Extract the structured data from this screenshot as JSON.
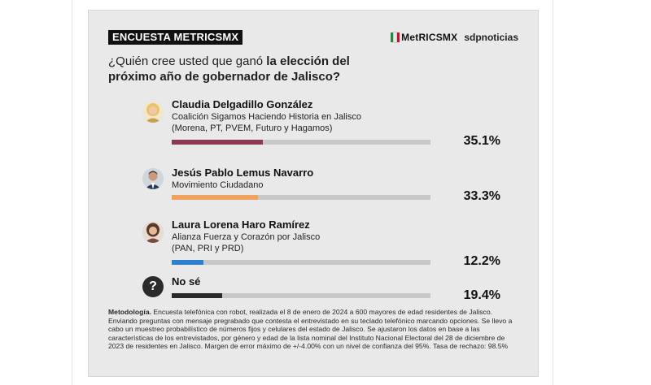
{
  "header": {
    "survey_tag": "ENCUESTA METRICSMX",
    "metrics_logo": "MetRICSMX",
    "sdp_logo": "sdpnoticias"
  },
  "question": {
    "normal": "¿Quién cree usted que ganó ",
    "bold": "la elección del próximo año de gobernador de Jalisco?"
  },
  "candidates": [
    {
      "name": "Claudia Delgadillo González",
      "line1": "Coalición Sigamos Haciendo Historia en Jalisco",
      "line2": "(Morena, PT, PVEM, Futuro y Hagamos)",
      "pct": "35.1%"
    },
    {
      "name": "Jesús Pablo Lemus Navarro",
      "line1": "Movimiento Ciudadano",
      "line2": "",
      "pct": "33.3%"
    },
    {
      "name": "Laura Lorena Haro Ramírez",
      "line1": "Alianza Fuerza y Corazón por Jalisco",
      "line2": "(PAN, PRI y PRD)",
      "pct": "12.2%"
    },
    {
      "name": "No sé",
      "line1": "",
      "line2": "",
      "pct": "19.4%",
      "icon": "?"
    }
  ],
  "colors": {
    "card_bg": "#e9e9e9",
    "track": "#c8c8c8",
    "morena": "#8a3a55",
    "mc": "#f0a35e",
    "pan": "#2f7fd0",
    "nose": "#2a2a2a"
  },
  "icons": {
    "candidate_1": "woman-portrait-icon",
    "candidate_2": "man-portrait-icon",
    "candidate_3": "woman-portrait-icon",
    "unknown": "question-mark-icon"
  },
  "chart_data": {
    "type": "bar",
    "title": "¿Quién cree usted que ganó la elección del próximo año de gobernador de Jalisco?",
    "categories": [
      "Claudia Delgadillo González",
      "Jesús Pablo Lemus Navarro",
      "Laura Lorena Haro Ramírez",
      "No sé"
    ],
    "values": [
      35.1,
      33.3,
      12.2,
      19.4
    ],
    "ylim": [
      0,
      100
    ],
    "orientation": "horizontal"
  },
  "methodology": {
    "label": "Metodología.",
    "text": " Encuesta telefónica con robot, realizada el 8 de enero de 2024 a 600 mayores de edad residentes de Jalisco. Enviando preguntas con mensaje pregrabado que contesta el entrevistado en su teclado telefónico marcando opciones. Se llevo a cabo un muestreo probabilístico de números fijos y celulares del estado de Jalisco. Se ajustaron los datos en base a las características de los entrevistados, por género y edad de la lista nominal del Instituto Nacional Electoral del 28 de diciembre de 2023 de residentes en Jalisco. Margen de error máximo de +/-4.00% con un nivel de confianza del 95%. Tasa de rechazo: 98.5%"
  }
}
